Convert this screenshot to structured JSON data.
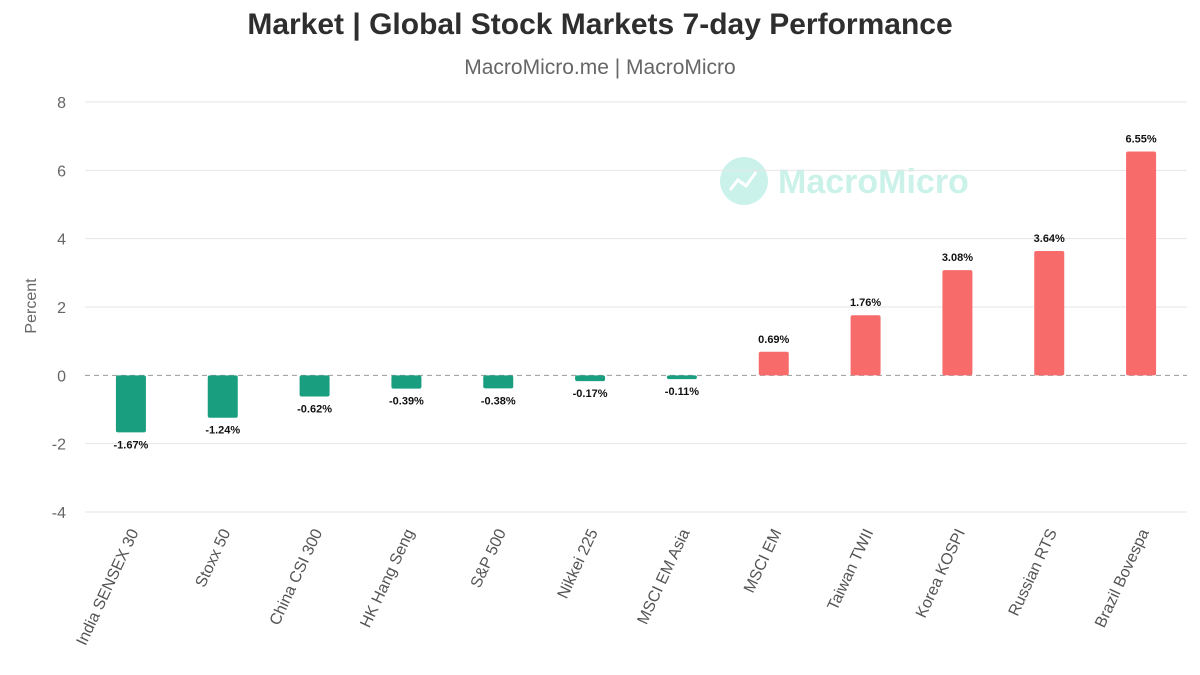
{
  "title": "Market | Global Stock Markets 7-day Performance",
  "subtitle": "MacroMicro.me | MacroMicro",
  "watermark": "MacroMicro",
  "colors": {
    "positive": "#f76b6b",
    "negative": "#1a9e80",
    "grid": "#e6e6e6",
    "zero_line": "#999999"
  },
  "chart_data": {
    "type": "bar",
    "title": "Market | Global Stock Markets 7-day Performance",
    "ylabel": "Percent",
    "xlabel": "",
    "ylim": [
      -4,
      8
    ],
    "yticks": [
      -4,
      -2,
      0,
      2,
      4,
      6,
      8
    ],
    "grid": true,
    "categories": [
      "India SENSEX 30",
      "Stoxx 50",
      "China CSI 300",
      "HK Hang Seng",
      "S&P 500",
      "Nikkei 225",
      "MSCI EM Asia",
      "MSCI EM",
      "Taiwan TWII",
      "Korea KOSPI",
      "Russian RTS",
      "Brazil Bovespa"
    ],
    "values": [
      -1.67,
      -1.24,
      -0.62,
      -0.39,
      -0.38,
      -0.17,
      -0.11,
      0.69,
      1.76,
      3.08,
      3.64,
      6.55
    ],
    "data_labels": [
      "-1.67%",
      "-1.24%",
      "-0.62%",
      "-0.39%",
      "-0.38%",
      "-0.17%",
      "-0.11%",
      "0.69%",
      "1.76%",
      "3.08%",
      "3.64%",
      "6.55%"
    ]
  }
}
